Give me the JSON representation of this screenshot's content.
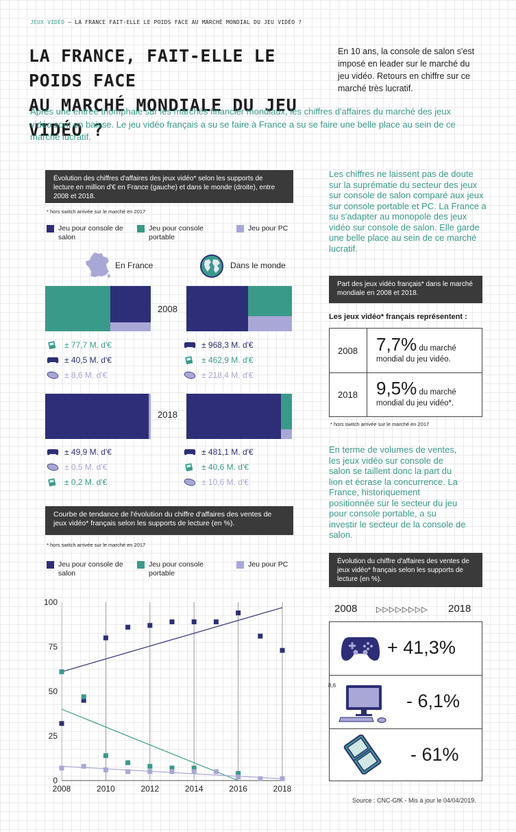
{
  "header": {
    "kicker_cat": "JEUX VIDÉO",
    "kicker_sep": " – ",
    "kicker_title": "LA FRANCE FAIT-ELLE LE POIDS FACE AU MARCHÉ MONDIAL DU JEU VIDÉO ?",
    "title_line1": "LA FRANCE, FAIT-ELLE LE POIDS FACE",
    "title_line2": "AU MARCHÉ MONDIALE DU JEU VIDÉO ?",
    "intro": "En 10 ans, la console de salon s'est imposé en leader sur le marché du jeu vidéo. Retours en chiffre sur ce marché très lucratif.",
    "lead": "Après une entrée triomphale sur les marchés financier mondiaux, les chiffres d'affaires du marché des jeux vidéo sont en baisse. Le jeu vidéo français a su se faire à France a su se faire une belle place au sein de ce marché lucratif."
  },
  "colors": {
    "salon": "#2e2e78",
    "portable": "#3a9a8a",
    "pc": "#a9a7d6",
    "accent": "#3a9a8a",
    "dark": "#3a3a3a"
  },
  "evolution": {
    "title": "Évolution des chiffres d'affaires des jeux vidéo* selon les supports de lecture en million d'€ en France (gauche) et dans le monde (droite), entre 2008 et 2018.",
    "note": "* hors switch arrivée sur le marché en 2017",
    "legend": {
      "salon": "Jeu pour console de salon",
      "portable": "Jeu pour console portable",
      "pc": "Jeu pour PC"
    },
    "france_label": "En France",
    "world_label": "Dans le monde",
    "year_a": "2008",
    "year_b": "2018",
    "values": {
      "fr_2008": [
        {
          "kind": "portable",
          "icon": "handheld-console-icon",
          "text": "± 77,7 M. d'€"
        },
        {
          "kind": "salon",
          "icon": "gamepad-icon",
          "text": "± 40,5 M. d'€"
        },
        {
          "kind": "pc",
          "icon": "mouse-icon",
          "text": "± 8,6 M. d'€"
        }
      ],
      "world_2008": [
        {
          "kind": "salon",
          "icon": "gamepad-icon",
          "text": "± 968,3 M. d'€"
        },
        {
          "kind": "portable",
          "icon": "handheld-console-icon",
          "text": "± 462,9 M. d'€"
        },
        {
          "kind": "pc",
          "icon": "mouse-icon",
          "text": "± 218,4 M. d'€"
        }
      ],
      "fr_2018": [
        {
          "kind": "salon",
          "icon": "gamepad-icon",
          "text": "± 49,9 M. d'€"
        },
        {
          "kind": "pc",
          "icon": "mouse-icon",
          "text": "± 0,5 M. d'€"
        },
        {
          "kind": "portable",
          "icon": "handheld-console-icon",
          "text": "± 0,2 M. d'€"
        }
      ],
      "world_2018": [
        {
          "kind": "salon",
          "icon": "gamepad-icon",
          "text": "± 481,1 M. d'€"
        },
        {
          "kind": "portable",
          "icon": "handheld-console-icon",
          "text": "± 40,6 M. d'€"
        },
        {
          "kind": "pc",
          "icon": "mouse-icon",
          "text": "± 10,6 M. d'€"
        }
      ]
    }
  },
  "sidebar": {
    "para1": "Les chiffres ne laissent pas de doute sur la suprématie du secteur des jeux sur console de salon comparé aux jeux sur console portable et PC. La France a su s'adapter au monopole des jeux vidéo sur console de salon. Elle garde une belle place au sein de ce marché lucratif.",
    "part_title": "Part des jeux vidéo français* dans le marché mondiale en 2008 et 2018.",
    "part_intro": "Les jeux vidéo* français représentent :",
    "part_rows": [
      {
        "year": "2008",
        "big": "7,7%",
        "suffix": " du marché",
        "line2": "mondial du jeu vidéo."
      },
      {
        "year": "2018",
        "big": "9,5%",
        "suffix": " du marché",
        "line2": "mondial du jeu vidéo*."
      }
    ],
    "part_note": "* hors switch arrivée sur le marché en 2017",
    "para2": "En terme de volumes de ventes, les jeux vidéo sur console de salon se taillent donc la part du lion et écrase la concurrence. La France, historiquement positionnée sur le secteur du jeu pour console portable, a su investir le secteur de la console de salon.",
    "evo_title": "Évolution du chiffre d'affaires des ventes de jeux vidéo* français selon les supports de lecture  (en %).",
    "evo_from": "2008",
    "evo_arrows": "▷▷▷▷▷▷▷▷",
    "evo_to": "2018",
    "evo_rows": [
      {
        "icon": "gamepad-icon",
        "value": "+ 41,3%"
      },
      {
        "icon": "pc-monitor-icon",
        "value": "- 6,1%",
        "tag": "8,6"
      },
      {
        "icon": "handheld-console-icon",
        "value": "- 61%"
      }
    ]
  },
  "trend": {
    "title": "Courbe de tendance de l'évolution du chiffre d'affaires des ventes de jeux vidéo* français selon les supports de lecture  (en %).",
    "note": "* hors switch arrivée sur le marché en 2017",
    "legend": {
      "salon": "Jeu pour console de salon",
      "portable": "Jeu pour console portable",
      "pc": "Jeu pour PC"
    }
  },
  "source": "Source : CNC-GfK  - Mis à jour le 04/04/2019.",
  "chart_data": [
    {
      "type": "area",
      "title": "Évolution des chiffres d'affaires des jeux vidéo* selon les supports de lecture en million d'€ en France (gauche) et dans le monde (droite), entre 2008 et 2018.",
      "categories": [
        "France 2008",
        "Monde 2008",
        "France 2018",
        "Monde 2018"
      ],
      "series": [
        {
          "name": "Jeu pour console de salon",
          "values": [
            40.5,
            968.3,
            49.9,
            481.1
          ]
        },
        {
          "name": "Jeu pour console portable",
          "values": [
            77.7,
            462.9,
            0.2,
            40.6
          ]
        },
        {
          "name": "Jeu pour PC",
          "values": [
            8.6,
            218.4,
            0.5,
            10.6
          ]
        }
      ],
      "unit": "M. d'€"
    },
    {
      "type": "scatter",
      "title": "Courbe de tendance de l'évolution du chiffre d'affaires des ventes de jeux vidéo* français selon les supports de lecture  (en %).",
      "x": [
        2008,
        2009,
        2010,
        2011,
        2012,
        2013,
        2014,
        2015,
        2016,
        2017,
        2018
      ],
      "series": [
        {
          "name": "Jeu pour console de salon",
          "values": [
            32,
            45,
            80,
            86,
            87,
            89,
            89,
            89,
            94,
            81,
            73
          ],
          "trend": [
            61,
            97
          ]
        },
        {
          "name": "Jeu pour console portable",
          "values": [
            61,
            47,
            14,
            10,
            8,
            7,
            7,
            5,
            4,
            null,
            null
          ],
          "trend": [
            40,
            0
          ]
        },
        {
          "name": "Jeu pour PC",
          "values": [
            7,
            8,
            6,
            5,
            5,
            5,
            5,
            5,
            2,
            1,
            1
          ],
          "trend": [
            8,
            1
          ]
        }
      ],
      "xticks": [
        2008,
        2010,
        2012,
        2014,
        2016,
        2018
      ],
      "yticks": [
        0,
        25,
        50,
        75,
        100
      ],
      "ylim": [
        0,
        100
      ],
      "xlim": [
        2008,
        2018
      ],
      "grid": true
    },
    {
      "type": "table",
      "title": "Part des jeux vidéo français* dans le marché mondiale en 2008 et 2018.",
      "rows": [
        [
          "2008",
          "7,7%"
        ],
        [
          "2018",
          "9,5%"
        ]
      ]
    }
  ]
}
